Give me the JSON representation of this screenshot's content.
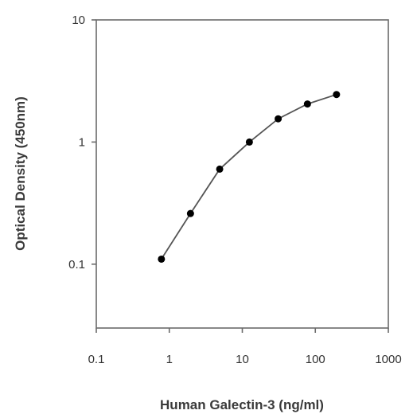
{
  "chart_data": {
    "type": "line",
    "xlabel": "Human Galectin-3  (ng/ml)",
    "ylabel": "Optical Density (450nm)",
    "x_scale": "log",
    "y_scale": "log",
    "xlim": [
      0.1,
      1000
    ],
    "ylim": [
      0.03,
      10
    ],
    "x_ticks": [
      0.1,
      1,
      10,
      100,
      1000
    ],
    "x_tick_labels": [
      "0.1",
      "1",
      "10",
      "100",
      "1000"
    ],
    "y_ticks": [
      0.1,
      1,
      10
    ],
    "y_tick_labels": [
      "0.1",
      "1",
      "10"
    ],
    "grid": false,
    "legend": "none",
    "series": [
      {
        "x": [
          0.78,
          1.95,
          4.9,
          12.5,
          31,
          78,
          195
        ],
        "y": [
          0.11,
          0.26,
          0.6,
          1.0,
          1.55,
          2.05,
          2.45
        ]
      }
    ]
  }
}
